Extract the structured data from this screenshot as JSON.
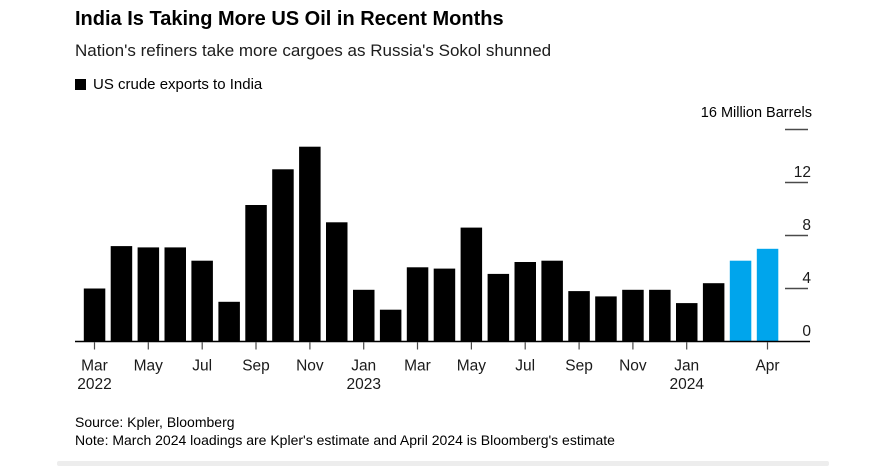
{
  "header": {
    "title": "India Is Taking More US Oil in Recent Months",
    "subtitle": "Nation's refiners take more cargoes as Russia's Sokol shunned"
  },
  "legend": {
    "label": "US crude exports to India",
    "swatch_color": "#000000"
  },
  "chart_data": {
    "type": "bar",
    "title": "US crude exports to India",
    "xlabel": "",
    "ylabel": "Million Barrels",
    "categories": [
      "Mar 2022",
      "Apr 2022",
      "May 2022",
      "Jun 2022",
      "Jul 2022",
      "Aug 2022",
      "Sep 2022",
      "Oct 2022",
      "Nov 2022",
      "Dec 2022",
      "Jan 2023",
      "Feb 2023",
      "Mar 2023",
      "Apr 2023",
      "May 2023",
      "Jun 2023",
      "Jul 2023",
      "Aug 2023",
      "Sep 2023",
      "Oct 2023",
      "Nov 2023",
      "Dec 2023",
      "Jan 2024",
      "Feb 2024",
      "Mar 2024",
      "Apr 2024"
    ],
    "values": [
      4.0,
      7.2,
      7.1,
      7.1,
      6.1,
      3.0,
      10.3,
      13.0,
      14.7,
      9.0,
      3.9,
      2.4,
      5.6,
      5.5,
      8.6,
      5.1,
      6.0,
      6.1,
      3.8,
      3.4,
      3.9,
      3.9,
      2.9,
      4.4,
      6.1,
      7.0
    ],
    "highlight_indices": [
      24,
      25
    ],
    "colors": {
      "bar_default": "#000000",
      "bar_highlight": "#00A5EC",
      "axis": "#000000",
      "tick": "#4a4a4a",
      "label": "#1a1a1a"
    },
    "ylim": [
      0,
      16
    ],
    "yticks": [
      0,
      4,
      8,
      12,
      16
    ],
    "ytick_top_label": "16 Million Barrels",
    "xticks": [
      {
        "index": 0,
        "label": "Mar",
        "year": "2022"
      },
      {
        "index": 2,
        "label": "May"
      },
      {
        "index": 4,
        "label": "Jul"
      },
      {
        "index": 6,
        "label": "Sep"
      },
      {
        "index": 8,
        "label": "Nov"
      },
      {
        "index": 10,
        "label": "Jan",
        "year": "2023"
      },
      {
        "index": 12,
        "label": "Mar"
      },
      {
        "index": 14,
        "label": "May"
      },
      {
        "index": 16,
        "label": "Jul"
      },
      {
        "index": 18,
        "label": "Sep"
      },
      {
        "index": 20,
        "label": "Nov"
      },
      {
        "index": 22,
        "label": "Jan",
        "year": "2024"
      },
      {
        "index": 25,
        "label": "Apr"
      }
    ],
    "grid": false,
    "legend_position": "top-left"
  },
  "footer": {
    "source": "Source: Kpler, Bloomberg",
    "note": "Note: March 2024 loadings are Kpler's estimate and April 2024 is Bloomberg's estimate"
  }
}
